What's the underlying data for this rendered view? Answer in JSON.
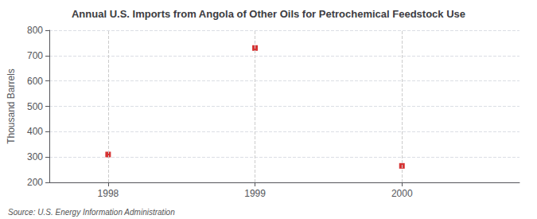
{
  "chart_data": {
    "type": "scatter",
    "title": "Annual U.S. Imports from Angola of Other Oils for Petrochemical Feedstock Use",
    "ylabel": "Thousand Barrels",
    "annotations": [
      "Source: U.S. Energy Information Administration"
    ],
    "x": [
      1998,
      1999,
      2000
    ],
    "values": [
      310,
      730,
      265
    ],
    "xlim": [
      1997.6,
      2000.8
    ],
    "ylim": [
      200,
      800
    ],
    "xticks": [
      1998,
      1999,
      2000
    ],
    "yticks": [
      200,
      300,
      400,
      500,
      600,
      700,
      800
    ],
    "color": "#cc0000",
    "marker": "square",
    "grid": true
  }
}
